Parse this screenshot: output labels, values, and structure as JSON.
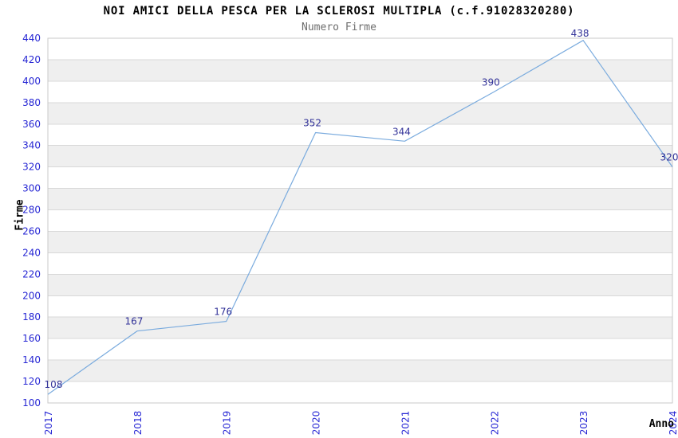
{
  "page": {
    "background": "#ffffff"
  },
  "chart_data": {
    "type": "line",
    "title": "NOI AMICI DELLA PESCA PER LA SCLEROSI MULTIPLA (c.f.91028320280)",
    "subtitle": "Numero Firme",
    "xlabel": "Anno",
    "ylabel": "Firme",
    "categories": [
      "2017",
      "2018",
      "2019",
      "2020",
      "2021",
      "2022",
      "2023",
      "2024"
    ],
    "series": [
      {
        "name": "Numero Firme",
        "values": [
          108,
          167,
          176,
          352,
          344,
          390,
          438,
          320
        ]
      }
    ],
    "ylim": [
      100,
      440
    ],
    "ytick_step": 20,
    "grid": "horizontal-bands-alternating",
    "legend_position": "none",
    "style": {
      "line_color": "#7aabde",
      "tick_label_color": "#2727d4",
      "data_label_color": "#333399",
      "band_color": "#efefef",
      "grid_color": "#d8d8d8",
      "border_color": "#c9c9c9",
      "title_color": "#000000",
      "subtitle_color": "#6e6e6e",
      "axis_title_color": "#000000",
      "background_color": "#ffffff"
    }
  }
}
